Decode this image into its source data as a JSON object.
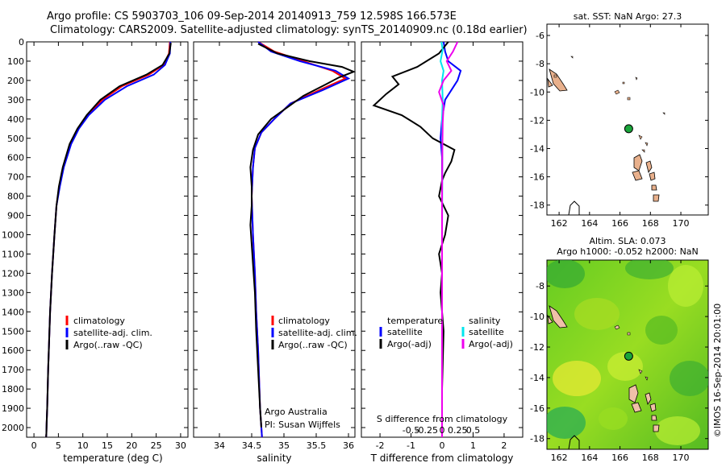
{
  "header": {
    "line1": "Argo profile: CS 5903703_106 09-Sep-2014 20140913_759 12.598S 166.573E",
    "line2": "Climatology: CARS2009. Satellite-adjusted climatology: synTS_20140909.nc (0.18d earlier)"
  },
  "colors": {
    "climatology": "#ff0000",
    "satellite": "#0000ff",
    "argo": "#000000",
    "salinity_satellite": "#00e5ee",
    "salinity_argo": "#ee00ee",
    "land": "#e8b08c",
    "argo_marker": "#1aa53a"
  },
  "footer_credit": {
    "org": "Argo Australia",
    "pi": "PI: Susan Wijffels"
  },
  "side_stamp": "©IMOS 16-Sep-2014 20:01:00",
  "chart_data": [
    {
      "type": "line",
      "id": "temperature",
      "xlabel": "temperature (deg C)",
      "ylim": [
        2050,
        0
      ],
      "xlim": [
        -1.5,
        31.5
      ],
      "xticks": [
        0,
        5,
        10,
        15,
        20,
        25,
        30
      ],
      "yticks": [
        0,
        100,
        200,
        300,
        400,
        500,
        600,
        700,
        800,
        900,
        1000,
        1100,
        1200,
        1300,
        1400,
        1500,
        1600,
        1700,
        1800,
        1900,
        2000
      ],
      "legend": [
        "climatology",
        "satellite-adj. clim.",
        "Argo(..raw -QC)"
      ],
      "series": [
        {
          "name": "climatology",
          "color": "#ff0000",
          "x": [
            27.8,
            27.6,
            26.5,
            23.5,
            18,
            14,
            11,
            9,
            7.5,
            6,
            5.2,
            4.6,
            4.2,
            3.7,
            3.3,
            3.1,
            2.9,
            2.8,
            2.7,
            2.6,
            2.55,
            2.5
          ],
          "y": [
            0,
            60,
            120,
            170,
            230,
            300,
            380,
            450,
            530,
            650,
            750,
            850,
            1000,
            1200,
            1400,
            1550,
            1700,
            1800,
            1900,
            1980,
            2030,
            2050
          ]
        },
        {
          "name": "satellite-adj. clim.",
          "color": "#0000ff",
          "x": [
            27.9,
            27.8,
            26.8,
            24.5,
            19,
            14.5,
            11.2,
            9.2,
            7.6,
            6.1,
            5.3,
            4.6,
            4.2,
            3.7,
            3.3,
            3.1,
            2.9,
            2.8,
            2.7,
            2.6,
            2.55,
            2.5
          ],
          "y": [
            0,
            60,
            120,
            170,
            230,
            300,
            380,
            450,
            530,
            650,
            750,
            850,
            1000,
            1200,
            1400,
            1550,
            1700,
            1800,
            1900,
            1980,
            2030,
            2050
          ]
        },
        {
          "name": "Argo(..raw -QC)",
          "color": "#000000",
          "x": [
            28,
            27.7,
            26.3,
            23,
            17.5,
            13.6,
            10.8,
            8.9,
            7.3,
            5.9,
            5.1,
            4.6,
            4.2,
            3.7,
            3.3,
            3.1,
            2.9,
            2.8,
            2.7,
            2.6,
            2.55,
            2.5
          ],
          "y": [
            5,
            60,
            120,
            170,
            230,
            300,
            380,
            450,
            530,
            650,
            750,
            850,
            1000,
            1200,
            1400,
            1550,
            1700,
            1800,
            1900,
            1980,
            2030,
            2050
          ]
        }
      ]
    },
    {
      "type": "line",
      "id": "salinity",
      "xlabel": "salinity",
      "ylim": [
        2050,
        0
      ],
      "xlim": [
        33.6,
        36.1
      ],
      "xticks": [
        34,
        34.5,
        35,
        35.5,
        36
      ],
      "xticklabels": [
        "34",
        "34.5",
        "35",
        "35.5",
        "36"
      ],
      "legend": [
        "climatology",
        "satellite-adj. clim.",
        "Argo(..raw -QC)"
      ],
      "series": [
        {
          "name": "climatology",
          "color": "#ff0000",
          "x": [
            34.6,
            34.85,
            35.3,
            35.75,
            35.95,
            35.55,
            35.1,
            34.85,
            34.65,
            34.55,
            34.52,
            34.5,
            34.52,
            34.55,
            34.57,
            34.6,
            34.62,
            34.63,
            34.65,
            34.66
          ],
          "y": [
            0,
            50,
            100,
            150,
            190,
            250,
            320,
            400,
            470,
            550,
            650,
            800,
            1000,
            1200,
            1400,
            1600,
            1800,
            1900,
            2000,
            2050
          ]
        },
        {
          "name": "satellite-adj. clim.",
          "color": "#0000ff",
          "x": [
            34.6,
            34.8,
            35.25,
            35.8,
            36,
            35.6,
            35.1,
            34.85,
            34.65,
            34.55,
            34.52,
            34.5,
            34.52,
            34.55,
            34.57,
            34.6,
            34.62,
            34.63,
            34.65,
            34.66
          ],
          "y": [
            0,
            50,
            100,
            150,
            190,
            250,
            320,
            400,
            470,
            550,
            650,
            800,
            1000,
            1200,
            1400,
            1600,
            1800,
            1900,
            2000,
            2050
          ]
        },
        {
          "name": "Argo(..raw -QC)",
          "color": "#000000",
          "x": [
            34.6,
            34.9,
            35.4,
            35.9,
            36.08,
            35.85,
            35.65,
            35.3,
            35.05,
            34.8,
            34.6,
            34.52,
            34.48,
            34.5,
            34.5,
            34.48,
            34.5,
            34.52,
            34.55,
            34.57,
            34.6,
            34.63,
            34.65
          ],
          "y": [
            10,
            60,
            100,
            130,
            155,
            185,
            220,
            280,
            340,
            400,
            480,
            560,
            650,
            750,
            850,
            950,
            1050,
            1150,
            1300,
            1500,
            1700,
            1900,
            2000
          ]
        }
      ]
    },
    {
      "type": "line",
      "id": "difference",
      "xlabel": "T difference from climatology",
      "xlabel_top": "S difference from climatology",
      "ylim": [
        2050,
        0
      ],
      "xlim": [
        -2.6,
        2.6
      ],
      "xticks": [
        -2,
        -1,
        0,
        1,
        2
      ],
      "xticklabels": [
        "-2",
        "-1",
        "0",
        "1",
        "2"
      ],
      "sticks": [
        -0.5,
        -0.25,
        0,
        0.25,
        0.5
      ],
      "sticklabels": [
        "-0.5",
        "-0.25",
        "0",
        "0.25",
        "0.5"
      ],
      "legend_temperature": {
        "title": "temperature",
        "items": [
          "satellite",
          "Argo(-adj)"
        ]
      },
      "legend_salinity": {
        "title": "salinity",
        "items": [
          "satellite",
          "Argo(-adj)"
        ]
      },
      "series": [
        {
          "name": "temperature satellite",
          "color": "#0000ff",
          "x": [
            0.05,
            0.1,
            0.2,
            0.6,
            0.5,
            0.3,
            0.1,
            0,
            -0.05,
            0,
            0,
            0,
            0,
            0,
            0,
            0
          ],
          "y": [
            0,
            50,
            100,
            150,
            200,
            250,
            300,
            400,
            500,
            600,
            800,
            1000,
            1300,
            1600,
            1900,
            2050
          ]
        },
        {
          "name": "temperature Argo(-adj)",
          "color": "#000000",
          "x": [
            0.2,
            -0.1,
            -0.8,
            -1.6,
            -1.4,
            -1.8,
            -2.2,
            -1.3,
            -0.7,
            -0.3,
            0.4,
            0.3,
            0.1,
            0,
            -0.1,
            0.2,
            0.1,
            -0.1,
            0,
            -0.05,
            0,
            0.05,
            0,
            0
          ],
          "y": [
            0,
            60,
            130,
            180,
            220,
            270,
            330,
            380,
            440,
            500,
            560,
            620,
            680,
            720,
            800,
            900,
            1000,
            1100,
            1200,
            1300,
            1400,
            1500,
            1800,
            2050
          ]
        },
        {
          "name": "salinity satellite",
          "color": "#00e5ee",
          "x": [
            -0.02,
            0.02,
            -0.05,
            0.05,
            0,
            0.02,
            0,
            0.01,
            0,
            0,
            0
          ],
          "y": [
            0,
            40,
            100,
            150,
            200,
            300,
            400,
            600,
            1000,
            1500,
            2050
          ]
        },
        {
          "name": "salinity Argo(-adj)",
          "color": "#ee00ee",
          "x": [
            0.5,
            0.35,
            0.15,
            0.3,
            0.05,
            -0.1,
            0.05,
            0.02,
            0.01,
            0,
            0,
            0
          ],
          "y": [
            0,
            50,
            100,
            150,
            200,
            260,
            330,
            420,
            550,
            800,
            1200,
            2050
          ]
        }
      ]
    },
    {
      "type": "map",
      "id": "sst_map",
      "title": "sat. SST: NaN Argo: 27.3",
      "xlim": [
        161.2,
        171.8
      ],
      "ylim": [
        -18.7,
        -5.2
      ],
      "xticks": [
        162,
        164,
        166,
        168,
        170
      ],
      "yticks": [
        -6,
        -8,
        -10,
        -12,
        -14,
        -16,
        -18
      ],
      "argo_position": {
        "lon": 166.573,
        "lat": -12.598
      }
    },
    {
      "type": "map",
      "id": "sla_map",
      "title": "Altim. SLA: 0.073",
      "subtitle": "Argo h1000: -0.052 h2000: NaN",
      "xlim": [
        161.2,
        171.8
      ],
      "ylim": [
        -18.7,
        -6.3
      ],
      "xticks": [
        162,
        164,
        166,
        168,
        170
      ],
      "yticks": [
        -8,
        -10,
        -12,
        -14,
        -16,
        -18
      ],
      "argo_position": {
        "lon": 166.573,
        "lat": -12.598
      }
    }
  ]
}
